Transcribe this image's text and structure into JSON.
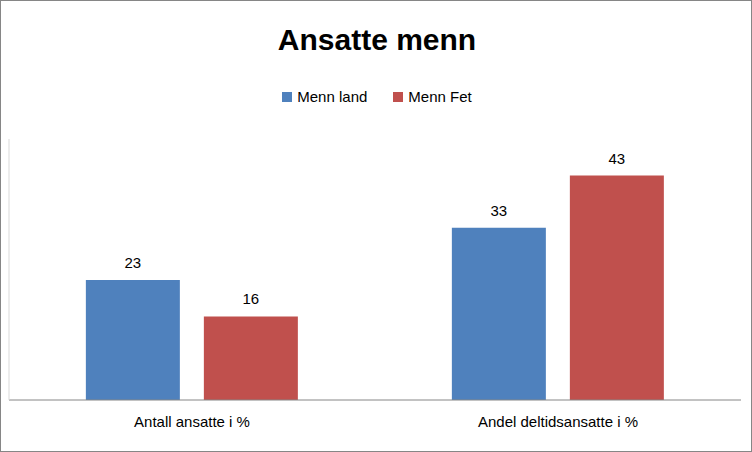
{
  "chart_data": {
    "type": "bar",
    "title": "Ansatte menn",
    "categories": [
      "Antall ansatte i %",
      "Andel deltidsansatte i %"
    ],
    "series": [
      {
        "name": "Menn land",
        "color": "#4f81bd",
        "values": [
          23,
          33
        ]
      },
      {
        "name": "Menn Fet",
        "color": "#c0504d",
        "values": [
          16,
          43
        ]
      }
    ],
    "ylim": [
      0,
      50
    ],
    "legend": "top",
    "data_labels": true,
    "tick_labels": "x",
    "grid": false
  }
}
